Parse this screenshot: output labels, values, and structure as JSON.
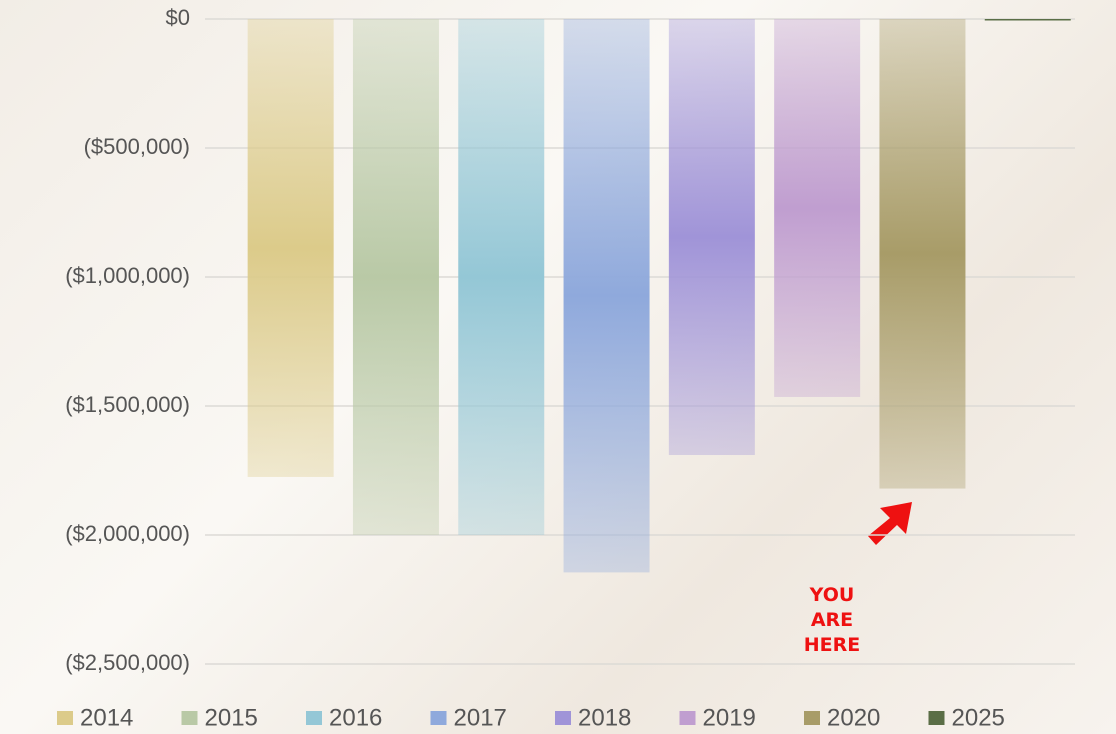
{
  "chart_data": {
    "type": "bar",
    "categories": [
      null
    ],
    "series": [
      {
        "name": "2014",
        "color": "#dccb8a",
        "values": [
          -1775000
        ]
      },
      {
        "name": "2015",
        "color": "#b9c9a6",
        "values": [
          -2000000
        ]
      },
      {
        "name": "2016",
        "color": "#94c7d6",
        "values": [
          -2000000
        ]
      },
      {
        "name": "2017",
        "color": "#8fa9dc",
        "values": [
          -2145000
        ]
      },
      {
        "name": "2018",
        "color": "#a094d8",
        "values": [
          -1690000
        ]
      },
      {
        "name": "2019",
        "color": "#c09ed0",
        "values": [
          -1465000
        ]
      },
      {
        "name": "2020",
        "color": "#a89c68",
        "values": [
          -1820000
        ]
      },
      {
        "name": "2025",
        "color": "#5a6e46",
        "values": [
          0
        ]
      }
    ],
    "ylim": [
      -2500000,
      0
    ],
    "yticks": [
      {
        "value": 0,
        "label": "$0"
      },
      {
        "value": -500000,
        "label": "($500,000)"
      },
      {
        "value": -1000000,
        "label": "($1,000,000)"
      },
      {
        "value": -1500000,
        "label": "($1,500,000)"
      },
      {
        "value": -2000000,
        "label": "($2,000,000)"
      },
      {
        "value": -2500000,
        "label": "($2,500,000)"
      }
    ],
    "grid": true,
    "legend": "bottom",
    "annotation": "YOU ARE HERE"
  }
}
